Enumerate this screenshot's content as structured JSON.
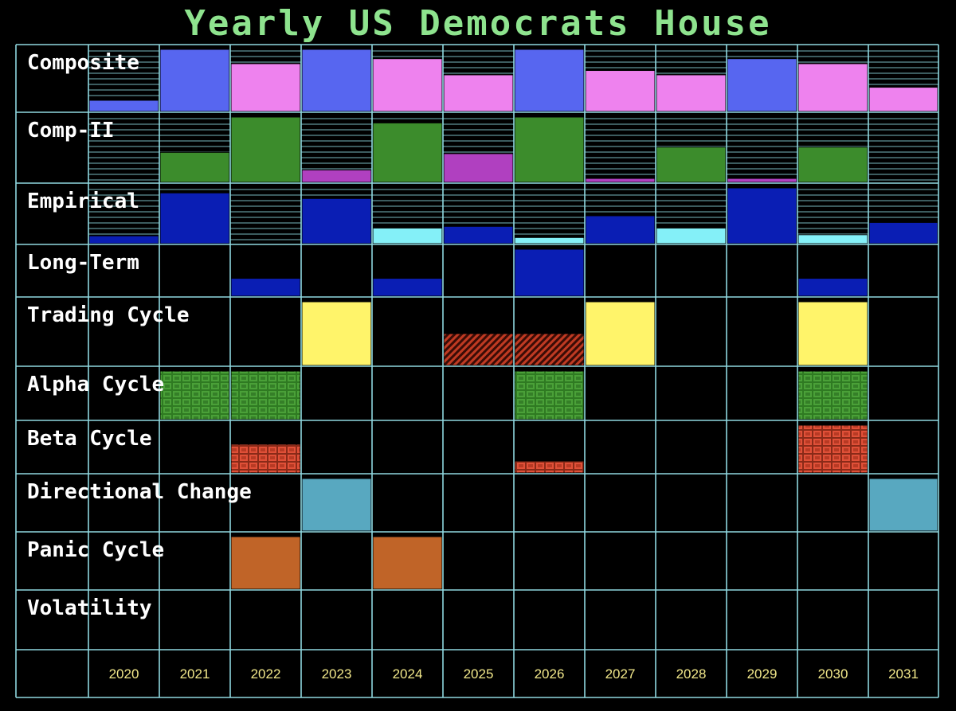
{
  "colors": {
    "grid": "#8fd8e0",
    "title": "#8ee38e",
    "label": "#ffffff",
    "year": "#f2e88a",
    "royal_blue": "#5766f0",
    "pink": "#ee82ee",
    "green": "#3c8c2c",
    "magenta": "#b040c0",
    "navy": "#0a1eb4",
    "cyan": "#84f0f8",
    "yellow": "#fff46a",
    "red": "#d84028",
    "teal": "#58a8c0",
    "orange": "#c06428"
  },
  "chart_data": {
    "type": "heatmap",
    "title": "Yearly US Democrats House",
    "years": [
      "2020",
      "2021",
      "2022",
      "2023",
      "2024",
      "2025",
      "2026",
      "2027",
      "2028",
      "2029",
      "2030",
      "2031"
    ],
    "rows": [
      {
        "name": "Composite",
        "scale": "striped",
        "cells": [
          {
            "year": "2020",
            "level": 0.18,
            "color": "royal_blue"
          },
          {
            "year": "2021",
            "level": 1.0,
            "color": "royal_blue"
          },
          {
            "year": "2022",
            "level": 0.77,
            "color": "pink"
          },
          {
            "year": "2023",
            "level": 1.0,
            "color": "royal_blue"
          },
          {
            "year": "2024",
            "level": 0.85,
            "color": "pink"
          },
          {
            "year": "2025",
            "level": 0.59,
            "color": "pink"
          },
          {
            "year": "2026",
            "level": 1.0,
            "color": "royal_blue"
          },
          {
            "year": "2027",
            "level": 0.66,
            "color": "pink"
          },
          {
            "year": "2028",
            "level": 0.59,
            "color": "pink"
          },
          {
            "year": "2029",
            "level": 0.85,
            "color": "royal_blue"
          },
          {
            "year": "2030",
            "level": 0.77,
            "color": "pink"
          },
          {
            "year": "2031",
            "level": 0.39,
            "color": "pink"
          }
        ]
      },
      {
        "name": "Comp-II",
        "scale": "striped",
        "cells": [
          {
            "year": "2021",
            "level": 0.46,
            "color": "green"
          },
          {
            "year": "2022",
            "level": 1.0,
            "color": "green"
          },
          {
            "year": "2023",
            "level": 0.19,
            "color": "magenta"
          },
          {
            "year": "2024",
            "level": 0.91,
            "color": "green"
          },
          {
            "year": "2025",
            "level": 0.44,
            "color": "magenta"
          },
          {
            "year": "2026",
            "level": 1.0,
            "color": "green"
          },
          {
            "year": "2027",
            "level": 0.06,
            "color": "magenta"
          },
          {
            "year": "2028",
            "level": 0.54,
            "color": "green"
          },
          {
            "year": "2029",
            "level": 0.06,
            "color": "magenta"
          },
          {
            "year": "2030",
            "level": 0.54,
            "color": "green"
          }
        ]
      },
      {
        "name": "Empirical",
        "scale": "striped",
        "cells": [
          {
            "year": "2020",
            "level": 0.14,
            "color": "navy"
          },
          {
            "year": "2021",
            "level": 0.91,
            "color": "navy"
          },
          {
            "year": "2023",
            "level": 0.81,
            "color": "navy"
          },
          {
            "year": "2024",
            "level": 0.28,
            "color": "cyan"
          },
          {
            "year": "2025",
            "level": 0.31,
            "color": "navy"
          },
          {
            "year": "2026",
            "level": 0.11,
            "color": "cyan"
          },
          {
            "year": "2027",
            "level": 0.5,
            "color": "navy"
          },
          {
            "year": "2028",
            "level": 0.28,
            "color": "cyan"
          },
          {
            "year": "2029",
            "level": 1.0,
            "color": "navy"
          },
          {
            "year": "2030",
            "level": 0.16,
            "color": "cyan"
          },
          {
            "year": "2031",
            "level": 0.38,
            "color": "navy"
          }
        ]
      },
      {
        "name": "Long-Term",
        "scale": "plain",
        "cells": [
          {
            "year": "2022",
            "level": 0.38,
            "color": "navy"
          },
          {
            "year": "2024",
            "level": 0.38,
            "color": "navy"
          },
          {
            "year": "2026",
            "level": 1.0,
            "color": "navy"
          },
          {
            "year": "2030",
            "level": 0.38,
            "color": "navy"
          }
        ]
      },
      {
        "name": "Trading Cycle",
        "scale": "plain",
        "cells": [
          {
            "year": "2023",
            "level": 1.0,
            "color": "yellow"
          },
          {
            "year": "2025",
            "level": 0.5,
            "color": "red",
            "pattern": "hatch"
          },
          {
            "year": "2026",
            "level": 0.5,
            "color": "red",
            "pattern": "hatch"
          },
          {
            "year": "2027",
            "level": 1.0,
            "color": "yellow"
          },
          {
            "year": "2030",
            "level": 1.0,
            "color": "yellow"
          }
        ]
      },
      {
        "name": "Alpha Cycle",
        "scale": "plain",
        "cells": [
          {
            "year": "2021",
            "level": 1.0,
            "color": "green",
            "pattern": "bricks"
          },
          {
            "year": "2022",
            "level": 1.0,
            "color": "green",
            "pattern": "bricks"
          },
          {
            "year": "2026",
            "level": 1.0,
            "color": "green",
            "pattern": "bricks"
          },
          {
            "year": "2030",
            "level": 1.0,
            "color": "green",
            "pattern": "bricks"
          }
        ]
      },
      {
        "name": "Beta Cycle",
        "scale": "plain",
        "cells": [
          {
            "year": "2022",
            "level": 0.6,
            "color": "red",
            "pattern": "bricks"
          },
          {
            "year": "2026",
            "level": 0.25,
            "color": "red",
            "pattern": "bricks"
          },
          {
            "year": "2030",
            "level": 1.0,
            "color": "red",
            "pattern": "bricks"
          }
        ]
      },
      {
        "name": "Directional Change",
        "scale": "plain",
        "cells": [
          {
            "year": "2023",
            "level": 1.0,
            "color": "teal"
          },
          {
            "year": "2031",
            "level": 1.0,
            "color": "teal"
          }
        ]
      },
      {
        "name": "Panic Cycle",
        "scale": "plain",
        "cells": [
          {
            "year": "2022",
            "level": 1.0,
            "color": "orange"
          },
          {
            "year": "2024",
            "level": 1.0,
            "color": "orange"
          }
        ]
      },
      {
        "name": "Volatility",
        "scale": "plain",
        "cells": []
      }
    ]
  }
}
